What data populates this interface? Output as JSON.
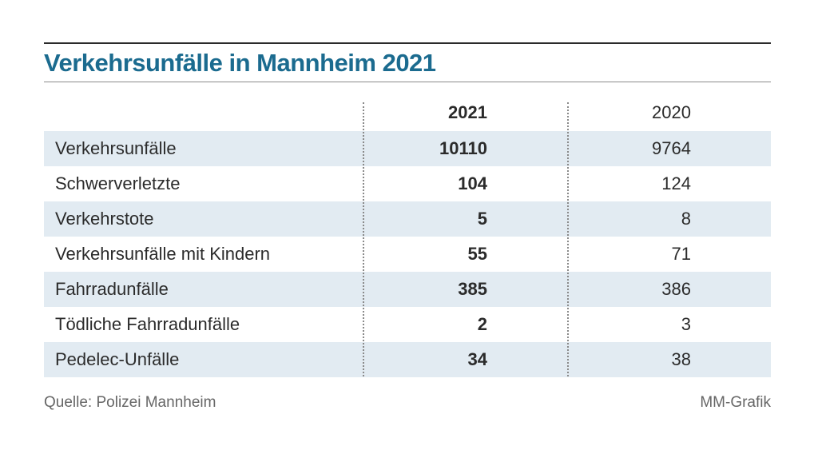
{
  "title": "Verkehrsunfälle in Mannheim 2021",
  "source": "Quelle: Polizei Mannheim",
  "credit": "MM-Grafik",
  "colors": {
    "title": "#1b6b8f",
    "row_shade": "#e2ebf2",
    "text": "#2b2b2b"
  },
  "chart_data": {
    "type": "table",
    "title": "Verkehrsunfälle in Mannheim 2021",
    "columns": [
      "",
      "2021",
      "2020"
    ],
    "rows": [
      {
        "label": "Verkehrsunfälle",
        "v2021": "10110",
        "v2020": "9764"
      },
      {
        "label": "Schwerverletzte",
        "v2021": "104",
        "v2020": "124"
      },
      {
        "label": "Verkehrstote",
        "v2021": "5",
        "v2020": "8"
      },
      {
        "label": "Verkehrsunfälle mit Kindern",
        "v2021": "55",
        "v2020": "71"
      },
      {
        "label": "Fahrradunfälle",
        "v2021": "385",
        "v2020": "386"
      },
      {
        "label": "Tödliche Fahrradunfälle",
        "v2021": "2",
        "v2020": "3"
      },
      {
        "label": "Pedelec-Unfälle",
        "v2021": "34",
        "v2020": "38"
      }
    ]
  }
}
